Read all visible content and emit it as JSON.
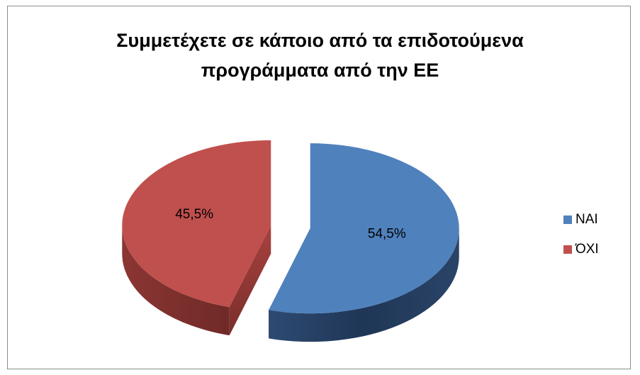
{
  "chart_data": {
    "type": "pie",
    "title_lines": [
      "Συμμετέχετε σε κάποιο από τα επιδοτούμενα",
      "προγράμματα από την ΕΕ"
    ],
    "categories": [
      "ΝΑΙ",
      "ΌΧΙ"
    ],
    "values": [
      54.5,
      45.5
    ],
    "labels": [
      "54,5%",
      "45,5%"
    ],
    "colors": [
      "#4f81bd",
      "#c0504d"
    ],
    "legend_position": "right",
    "style": "3d-exploded"
  }
}
